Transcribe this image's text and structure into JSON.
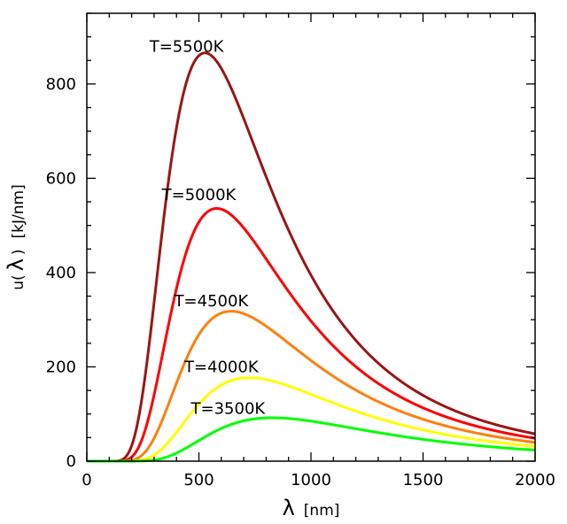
{
  "chart_data": {
    "type": "line",
    "xlabel": {
      "symbol": "λ",
      "unit": "[nm]"
    },
    "ylabel": {
      "prefix": "u(",
      "symbol": "λ",
      "suffix": ")",
      "unit": "[kJ/nm]"
    },
    "xlim": [
      0,
      2000
    ],
    "ylim": [
      0,
      950
    ],
    "xticks": [
      "0",
      "500",
      "1000",
      "1500",
      "2000"
    ],
    "yticks": [
      "0",
      "200",
      "400",
      "600",
      "800"
    ],
    "x_major": [
      0,
      500,
      1000,
      1500,
      2000
    ],
    "y_major": [
      0,
      200,
      400,
      600,
      800
    ],
    "grid": false,
    "series": [
      {
        "name": "T=5500K",
        "temperature": 5500,
        "color": "#9b1515",
        "peak_x": 527,
        "peak_y": 866,
        "label_pos": [
          445,
          880
        ]
      },
      {
        "name": "T=5000K",
        "temperature": 5000,
        "color": "#ff0000",
        "peak_x": 580,
        "peak_y": 536,
        "label_pos": [
          500,
          565
        ]
      },
      {
        "name": "T=4500K",
        "temperature": 4500,
        "color": "#ff7f0e",
        "peak_x": 644,
        "peak_y": 318,
        "label_pos": [
          555,
          340
        ]
      },
      {
        "name": "T=4000K",
        "temperature": 4000,
        "color": "#ffff00",
        "peak_x": 725,
        "peak_y": 177,
        "label_pos": [
          600,
          200
        ]
      },
      {
        "name": "T=3500K",
        "temperature": 3500,
        "color": "#00ff00",
        "peak_x": 828,
        "peak_y": 92,
        "label_pos": [
          630,
          112
        ]
      }
    ]
  }
}
